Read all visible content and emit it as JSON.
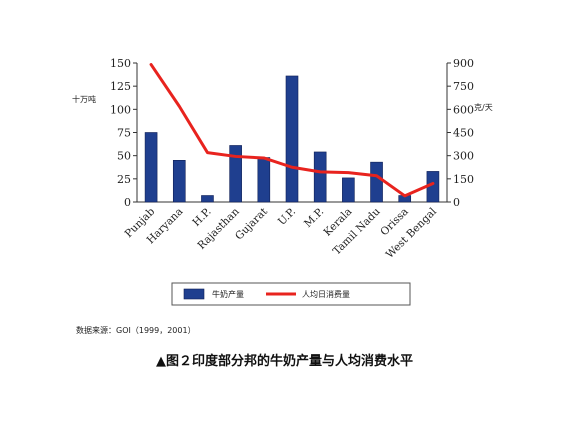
{
  "chart_data": {
    "type": "bar+line",
    "categories": [
      "Punjab",
      "Haryana",
      "H.P.",
      "Rajasthan",
      "Gujarat",
      "U.P.",
      "M.P.",
      "Kerala",
      "Tamil Nadu",
      "Orissa",
      "West Bengal"
    ],
    "series": [
      {
        "name": "牛奶产量",
        "type": "bar",
        "axis": "left",
        "color": "#1f3f8f",
        "values": [
          75,
          45,
          7,
          61,
          48,
          136,
          54,
          26,
          43,
          7,
          33
        ]
      },
      {
        "name": "人均日消费量",
        "type": "line",
        "axis": "right",
        "color": "#e8231e",
        "values": [
          890,
          620,
          320,
          295,
          285,
          225,
          195,
          190,
          170,
          40,
          120
        ]
      }
    ],
    "left_axis": {
      "unit": "十万吨",
      "ylim": [
        0,
        150
      ],
      "ticks": [
        "0",
        "25",
        "50",
        "75",
        "100",
        "125",
        "150"
      ]
    },
    "right_axis": {
      "unit": "克/天",
      "ylim": [
        0,
        900
      ],
      "ticks": [
        "0",
        "150",
        "300",
        "450",
        "600",
        "750",
        "900"
      ]
    },
    "grid": false,
    "legend": "bottom"
  },
  "source_text": "数据来源：GOI（1999，2001）",
  "caption": "▲图２印度部分邦的牛奶产量与人均消费水平"
}
